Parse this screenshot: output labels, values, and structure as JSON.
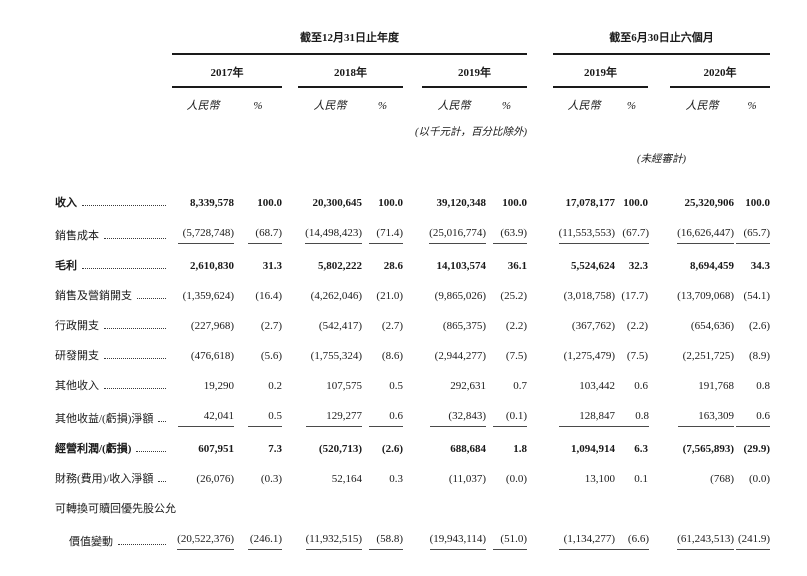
{
  "colors": {
    "text": "#1a1a1a",
    "heavy_rule": "#1a1a1a",
    "value_underline": "#4a4a4a"
  },
  "table": {
    "period_groups": [
      {
        "label": "截至12月31日止年度",
        "years": [
          "2017年",
          "2018年",
          "2019年"
        ]
      },
      {
        "label": "截至6月30日止六個月",
        "years": [
          "2019年",
          "2020年"
        ]
      }
    ],
    "col_headers": {
      "rmb": "人民幣",
      "pct": "%"
    },
    "notes": {
      "units": "(以千元計，百分比除外)",
      "unaudited": "(未經審計)"
    },
    "rows": [
      {
        "label": "收入",
        "bold": true,
        "values": [
          "8,339,578",
          "100.0",
          "20,300,645",
          "100.0",
          "39,120,348",
          "100.0",
          "17,078,177",
          "100.0",
          "25,320,906",
          "100.0"
        ]
      },
      {
        "label": "銷售成本",
        "underline": true,
        "values": [
          "(5,728,748)",
          "(68.7)",
          "(14,498,423)",
          "(71.4)",
          "(25,016,774)",
          "(63.9)",
          "(11,553,553)",
          "(67.7)",
          "(16,626,447)",
          "(65.7)"
        ]
      },
      {
        "label": "毛利",
        "bold": true,
        "values": [
          "2,610,830",
          "31.3",
          "5,802,222",
          "28.6",
          "14,103,574",
          "36.1",
          "5,524,624",
          "32.3",
          "8,694,459",
          "34.3"
        ]
      },
      {
        "label": "銷售及營銷開支",
        "values": [
          "(1,359,624)",
          "(16.4)",
          "(4,262,046)",
          "(21.0)",
          "(9,865,026)",
          "(25.2)",
          "(3,018,758)",
          "(17.7)",
          "(13,709,068)",
          "(54.1)"
        ]
      },
      {
        "label": "行政開支",
        "values": [
          "(227,968)",
          "(2.7)",
          "(542,417)",
          "(2.7)",
          "(865,375)",
          "(2.2)",
          "(367,762)",
          "(2.2)",
          "(654,636)",
          "(2.6)"
        ]
      },
      {
        "label": "研發開支",
        "values": [
          "(476,618)",
          "(5.6)",
          "(1,755,324)",
          "(8.6)",
          "(2,944,277)",
          "(7.5)",
          "(1,275,479)",
          "(7.5)",
          "(2,251,725)",
          "(8.9)"
        ]
      },
      {
        "label": "其他收入",
        "values": [
          "19,290",
          "0.2",
          "107,575",
          "0.5",
          "292,631",
          "0.7",
          "103,442",
          "0.6",
          "191,768",
          "0.8"
        ]
      },
      {
        "label": "其他收益/(虧損)淨額",
        "underline": true,
        "values": [
          "42,041",
          "0.5",
          "129,277",
          "0.6",
          "(32,843)",
          "(0.1)",
          "128,847",
          "0.8",
          "163,309",
          "0.6"
        ]
      },
      {
        "label": "經營利潤/(虧損)",
        "bold": true,
        "values": [
          "607,951",
          "7.3",
          "(520,713)",
          "(2.6)",
          "688,684",
          "1.8",
          "1,094,914",
          "6.3",
          "(7,565,893)",
          "(29.9)"
        ]
      },
      {
        "label": "財務(費用)/收入淨額",
        "values": [
          "(26,076)",
          "(0.3)",
          "52,164",
          "0.3",
          "(11,037)",
          "(0.0)",
          "13,100",
          "0.1",
          "(768)",
          "(0.0)"
        ]
      },
      {
        "label": "可轉換可贖回優先股公允",
        "no_dots": true,
        "no_values": true,
        "values": []
      },
      {
        "label": "價值變動",
        "indent": true,
        "underline": true,
        "values": [
          "(20,522,376)",
          "(246.1)",
          "(11,932,515)",
          "(58.8)",
          "(19,943,114)",
          "(51.0)",
          "(1,134,277)",
          "(6.6)",
          "(61,243,513)",
          "(241.9)"
        ]
      }
    ]
  }
}
